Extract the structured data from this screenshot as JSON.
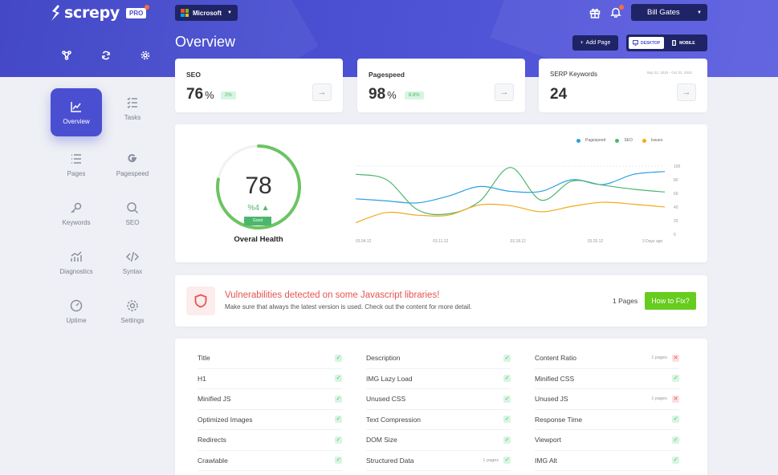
{
  "brand": {
    "name": "screpy",
    "badge": "PRO"
  },
  "header": {
    "company": "Microsoft",
    "user": "Bill Gates",
    "page_title": "Overview",
    "add_page": "Add Page",
    "device": {
      "desktop": "DESKTOP",
      "mobile": "MOBILE"
    }
  },
  "sidebar": {
    "items": [
      {
        "label": "Overview",
        "icon": "chart-line-icon",
        "active": true
      },
      {
        "label": "Tasks",
        "icon": "tasks-icon"
      },
      {
        "label": "Pages",
        "icon": "pages-icon"
      },
      {
        "label": "Pagespeed",
        "icon": "google-icon"
      },
      {
        "label": "Keywords",
        "icon": "key-icon"
      },
      {
        "label": "SEO",
        "icon": "search-icon"
      },
      {
        "label": "Diagnostics",
        "icon": "diagnostics-icon"
      },
      {
        "label": "Syntax",
        "icon": "code-icon"
      },
      {
        "label": "Uptime",
        "icon": "gauge-icon"
      },
      {
        "label": "Settings",
        "icon": "gear-icon"
      }
    ]
  },
  "stats": {
    "seo": {
      "label": "SEO",
      "value": "76",
      "unit": "%",
      "badge": "2%"
    },
    "pagespeed": {
      "label": "Pagespeed",
      "value": "98",
      "unit": "%",
      "badge": "8.8%"
    },
    "serp": {
      "label": "SERP Keywords",
      "value": "24",
      "date": "Sep 22, 2020 - Oct 22, 2020"
    }
  },
  "health": {
    "score": "78",
    "change": "%4 ▲",
    "status": "Good",
    "label": "Overal Health"
  },
  "chart_data": {
    "type": "line",
    "x_labels": [
      "03.04.12",
      "03.11.12",
      "03.18.12",
      "03.25.12",
      "3 Days ago"
    ],
    "y_ticks": [
      "100",
      "80",
      "60",
      "40",
      "20",
      "0"
    ],
    "ylim": [
      0,
      100
    ],
    "series": [
      {
        "name": "Pagespeed",
        "color": "#2d9fe0",
        "values": [
          52,
          49,
          46,
          56,
          70,
          63,
          63,
          80,
          73,
          88,
          92
        ]
      },
      {
        "name": "SEO",
        "color": "#4cb66d",
        "values": [
          88,
          80,
          36,
          30,
          48,
          98,
          50,
          78,
          72,
          66,
          62
        ]
      },
      {
        "name": "Issues",
        "color": "#f2a91d",
        "values": [
          17,
          32,
          28,
          28,
          43,
          42,
          33,
          41,
          47,
          44,
          40
        ]
      }
    ]
  },
  "alert": {
    "title": "Vulnerabilities detected on some Javascript libraries!",
    "subtitle": "Make sure that always the latest version is used. Check out the content for more detail.",
    "pages": "1 Pages",
    "button": "How to Fix?"
  },
  "checklist": {
    "col1": [
      {
        "label": "Title",
        "status": "ok"
      },
      {
        "label": "H1",
        "status": "ok"
      },
      {
        "label": "Minified JS",
        "status": "ok"
      },
      {
        "label": "Optimized Images",
        "status": "ok"
      },
      {
        "label": "Redirects",
        "status": "ok"
      },
      {
        "label": "Crawlable",
        "status": "ok"
      }
    ],
    "col2": [
      {
        "label": "Description",
        "status": "ok"
      },
      {
        "label": "IMG Lazy Load",
        "status": "ok"
      },
      {
        "label": "Unused CSS",
        "status": "ok"
      },
      {
        "label": "Text Compression",
        "status": "ok"
      },
      {
        "label": "DOM Size",
        "status": "ok"
      },
      {
        "label": "Structured Data",
        "status": "ok",
        "pages": "1 pages"
      }
    ],
    "col3": [
      {
        "label": "Content Ratio",
        "status": "fail",
        "pages": "1 pages"
      },
      {
        "label": "Minified CSS",
        "status": "ok"
      },
      {
        "label": "Unused JS",
        "status": "fail",
        "pages": "1 pages"
      },
      {
        "label": "Response Time",
        "status": "ok"
      },
      {
        "label": "Viewport",
        "status": "ok"
      },
      {
        "label": "IMG Alt",
        "status": "ok"
      }
    ]
  }
}
